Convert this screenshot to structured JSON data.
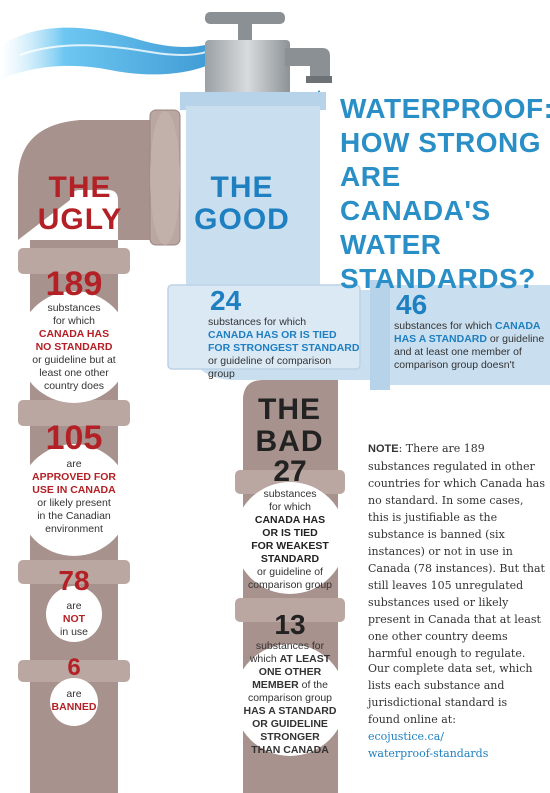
{
  "title": [
    "WATERPROOF:",
    "HOW STRONG",
    "ARE CANADA'S",
    "WATER",
    "STANDARDS?"
  ],
  "ugly": {
    "label": [
      "THE",
      "UGLY"
    ],
    "items": [
      {
        "number": "189",
        "lines": [
          "substances",
          "for which"
        ],
        "bold": [
          "CANADA HAS",
          "NO STANDARD"
        ],
        "after": [
          "or guideline but at",
          "least one other",
          "country does"
        ]
      },
      {
        "number": "105",
        "lines": [
          "are"
        ],
        "bold": [
          "APPROVED FOR",
          "USE IN CANADA"
        ],
        "after": [
          "or likely present",
          "in the Canadian",
          "environment"
        ]
      },
      {
        "number": "78",
        "lines": [
          "are"
        ],
        "bold": [
          "NOT"
        ],
        "after": [
          "in use"
        ]
      },
      {
        "number": "6",
        "lines": [
          "are"
        ],
        "bold": [
          "BANNED"
        ],
        "after": []
      }
    ]
  },
  "good": {
    "label": [
      "THE",
      "GOOD"
    ],
    "number": "24",
    "line1": "substances for which",
    "bold": [
      "CANADA HAS OR IS TIED",
      "FOR STRONGEST STANDARD"
    ],
    "after": "or guideline of comparison group"
  },
  "mid": {
    "number": "46",
    "line1": "substances for which",
    "bold1": "CANADA",
    "bold2": "HAS A STANDARD",
    "after2": " or guideline",
    "after3": "and at least one member of",
    "after4": "comparison group doesn't"
  },
  "bad": {
    "label": [
      "THE",
      "BAD"
    ],
    "items": [
      {
        "number": "27",
        "lines": [
          "substances",
          "for which"
        ],
        "bold": [
          "CANADA HAS",
          "OR IS TIED",
          "FOR WEAKEST",
          "STANDARD"
        ],
        "after": [
          "or guideline of",
          "comparison group"
        ]
      },
      {
        "number": "13",
        "lines": [
          "substances for"
        ],
        "mixed": "which ",
        "bold": [
          "AT LEAST",
          "ONE OTHER",
          "MEMBER"
        ],
        "after_inline": " of the",
        "after": [
          "comparison group"
        ],
        "bold2": [
          "HAS A STANDARD",
          "OR GUIDELINE",
          "STRONGER",
          "THAN CANADA"
        ]
      }
    ]
  },
  "note": {
    "label": "NOTE",
    "text": ": There are 189 substances regulated in other countries for which Canada has no standard. In some cases, this is justifiable as the substance is banned (six instances) or not in use in Canada (78 instances). But that still leaves 105 unregulated substances used or likely present in Canada that at least one other country deems harmful enough to regulate.",
    "data_text": "Our complete data set, which lists each substance and jurisdictional standard is found online at:",
    "link": [
      "ecojustice.ca/",
      "waterproof-standards"
    ]
  },
  "colors": {
    "ugly_pipe": "#a8928d",
    "good_pipe": "#c9dff0",
    "bad_pipe": "#a8928d",
    "title_blue": "#2a8fc6",
    "red": "#b32025"
  }
}
